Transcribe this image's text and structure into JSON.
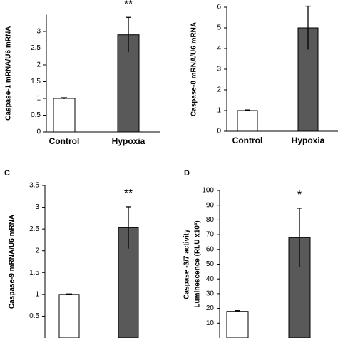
{
  "chart_data": [
    {
      "type": "bar",
      "y_label": [
        "Caspase-1 mRNA/U6 mRNA"
      ],
      "categories": [
        "Control",
        "Hypoxia"
      ],
      "values": [
        1.0,
        2.9
      ],
      "errors": [
        0.02,
        0.52
      ],
      "colors": [
        "#ffffff",
        "#595959"
      ],
      "annotation": "**",
      "ylim": [
        0,
        3.5
      ],
      "yticks": [
        0,
        0.5,
        1,
        1.5,
        2,
        2.5,
        3
      ]
    },
    {
      "type": "bar",
      "y_label": [
        "Caspase-8 mRNA/U6 mRNA"
      ],
      "categories": [
        "Control",
        "Hypoxia"
      ],
      "values": [
        1.0,
        5.0
      ],
      "errors": [
        0.03,
        1.05
      ],
      "colors": [
        "#ffffff",
        "#595959"
      ],
      "ylim": [
        0,
        6
      ],
      "yticks": [
        0,
        1,
        2,
        3,
        4,
        5,
        6
      ]
    },
    {
      "type": "bar",
      "panel": "C",
      "y_label": [
        "Caspase-9 mRNA/U6 mRNA"
      ],
      "values": [
        1.0,
        2.53
      ],
      "errors": [
        0.01,
        0.48
      ],
      "colors": [
        "#ffffff",
        "#595959"
      ],
      "annotation": "**",
      "ylim": [
        0,
        3.5
      ],
      "yticks": [
        0.5,
        1,
        1.5,
        2,
        2.5,
        3,
        3.5
      ]
    },
    {
      "type": "bar",
      "panel": "D",
      "y_label": [
        "Caspase -3/7 activity",
        "Luminescence (RLU x10³)"
      ],
      "values": [
        18,
        68
      ],
      "errors": [
        0.5,
        20
      ],
      "colors": [
        "#ffffff",
        "#595959"
      ],
      "annotation": "*",
      "ylim": [
        0,
        100
      ],
      "yticks": [
        10,
        20,
        30,
        40,
        50,
        60,
        70,
        80,
        90,
        100
      ]
    }
  ]
}
